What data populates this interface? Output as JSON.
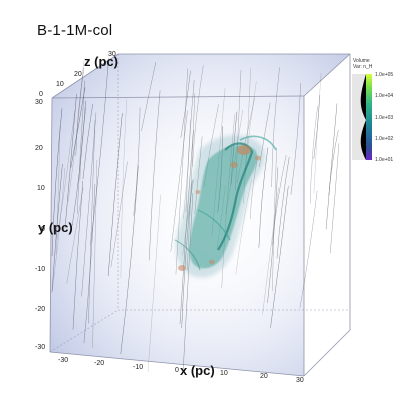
{
  "title": "B-1-1M-col",
  "axes": {
    "x": {
      "label": "x (pc)",
      "ticks": [
        "-30",
        "-20",
        "-10",
        "0",
        "10",
        "20",
        "30"
      ]
    },
    "y": {
      "label": "y (pc)",
      "ticks": [
        "30",
        "20",
        "10",
        "0",
        "-10",
        "-20",
        "-30"
      ]
    },
    "z": {
      "label": "z (pc)",
      "ticks": [
        "30",
        "20",
        "10",
        "0"
      ]
    }
  },
  "legend": {
    "title_line1": "Volume",
    "title_line2": "Var: n_H",
    "ticks": [
      "1.0e+05",
      "1.0e+04",
      "1.0e+03",
      "1.0e+02",
      "1.0e+01"
    ],
    "gradient": [
      "#d8ff3a",
      "#7be04a",
      "#2fb38a",
      "#1e8c94",
      "#236e9a",
      "#2c4d96",
      "#4a2c8a",
      "#6a26c4"
    ]
  },
  "colors": {
    "fog": "#c9d0ea",
    "cloud": "#2f9a8a",
    "core": "#c8845a",
    "field_lines": "#2a2a3a"
  }
}
